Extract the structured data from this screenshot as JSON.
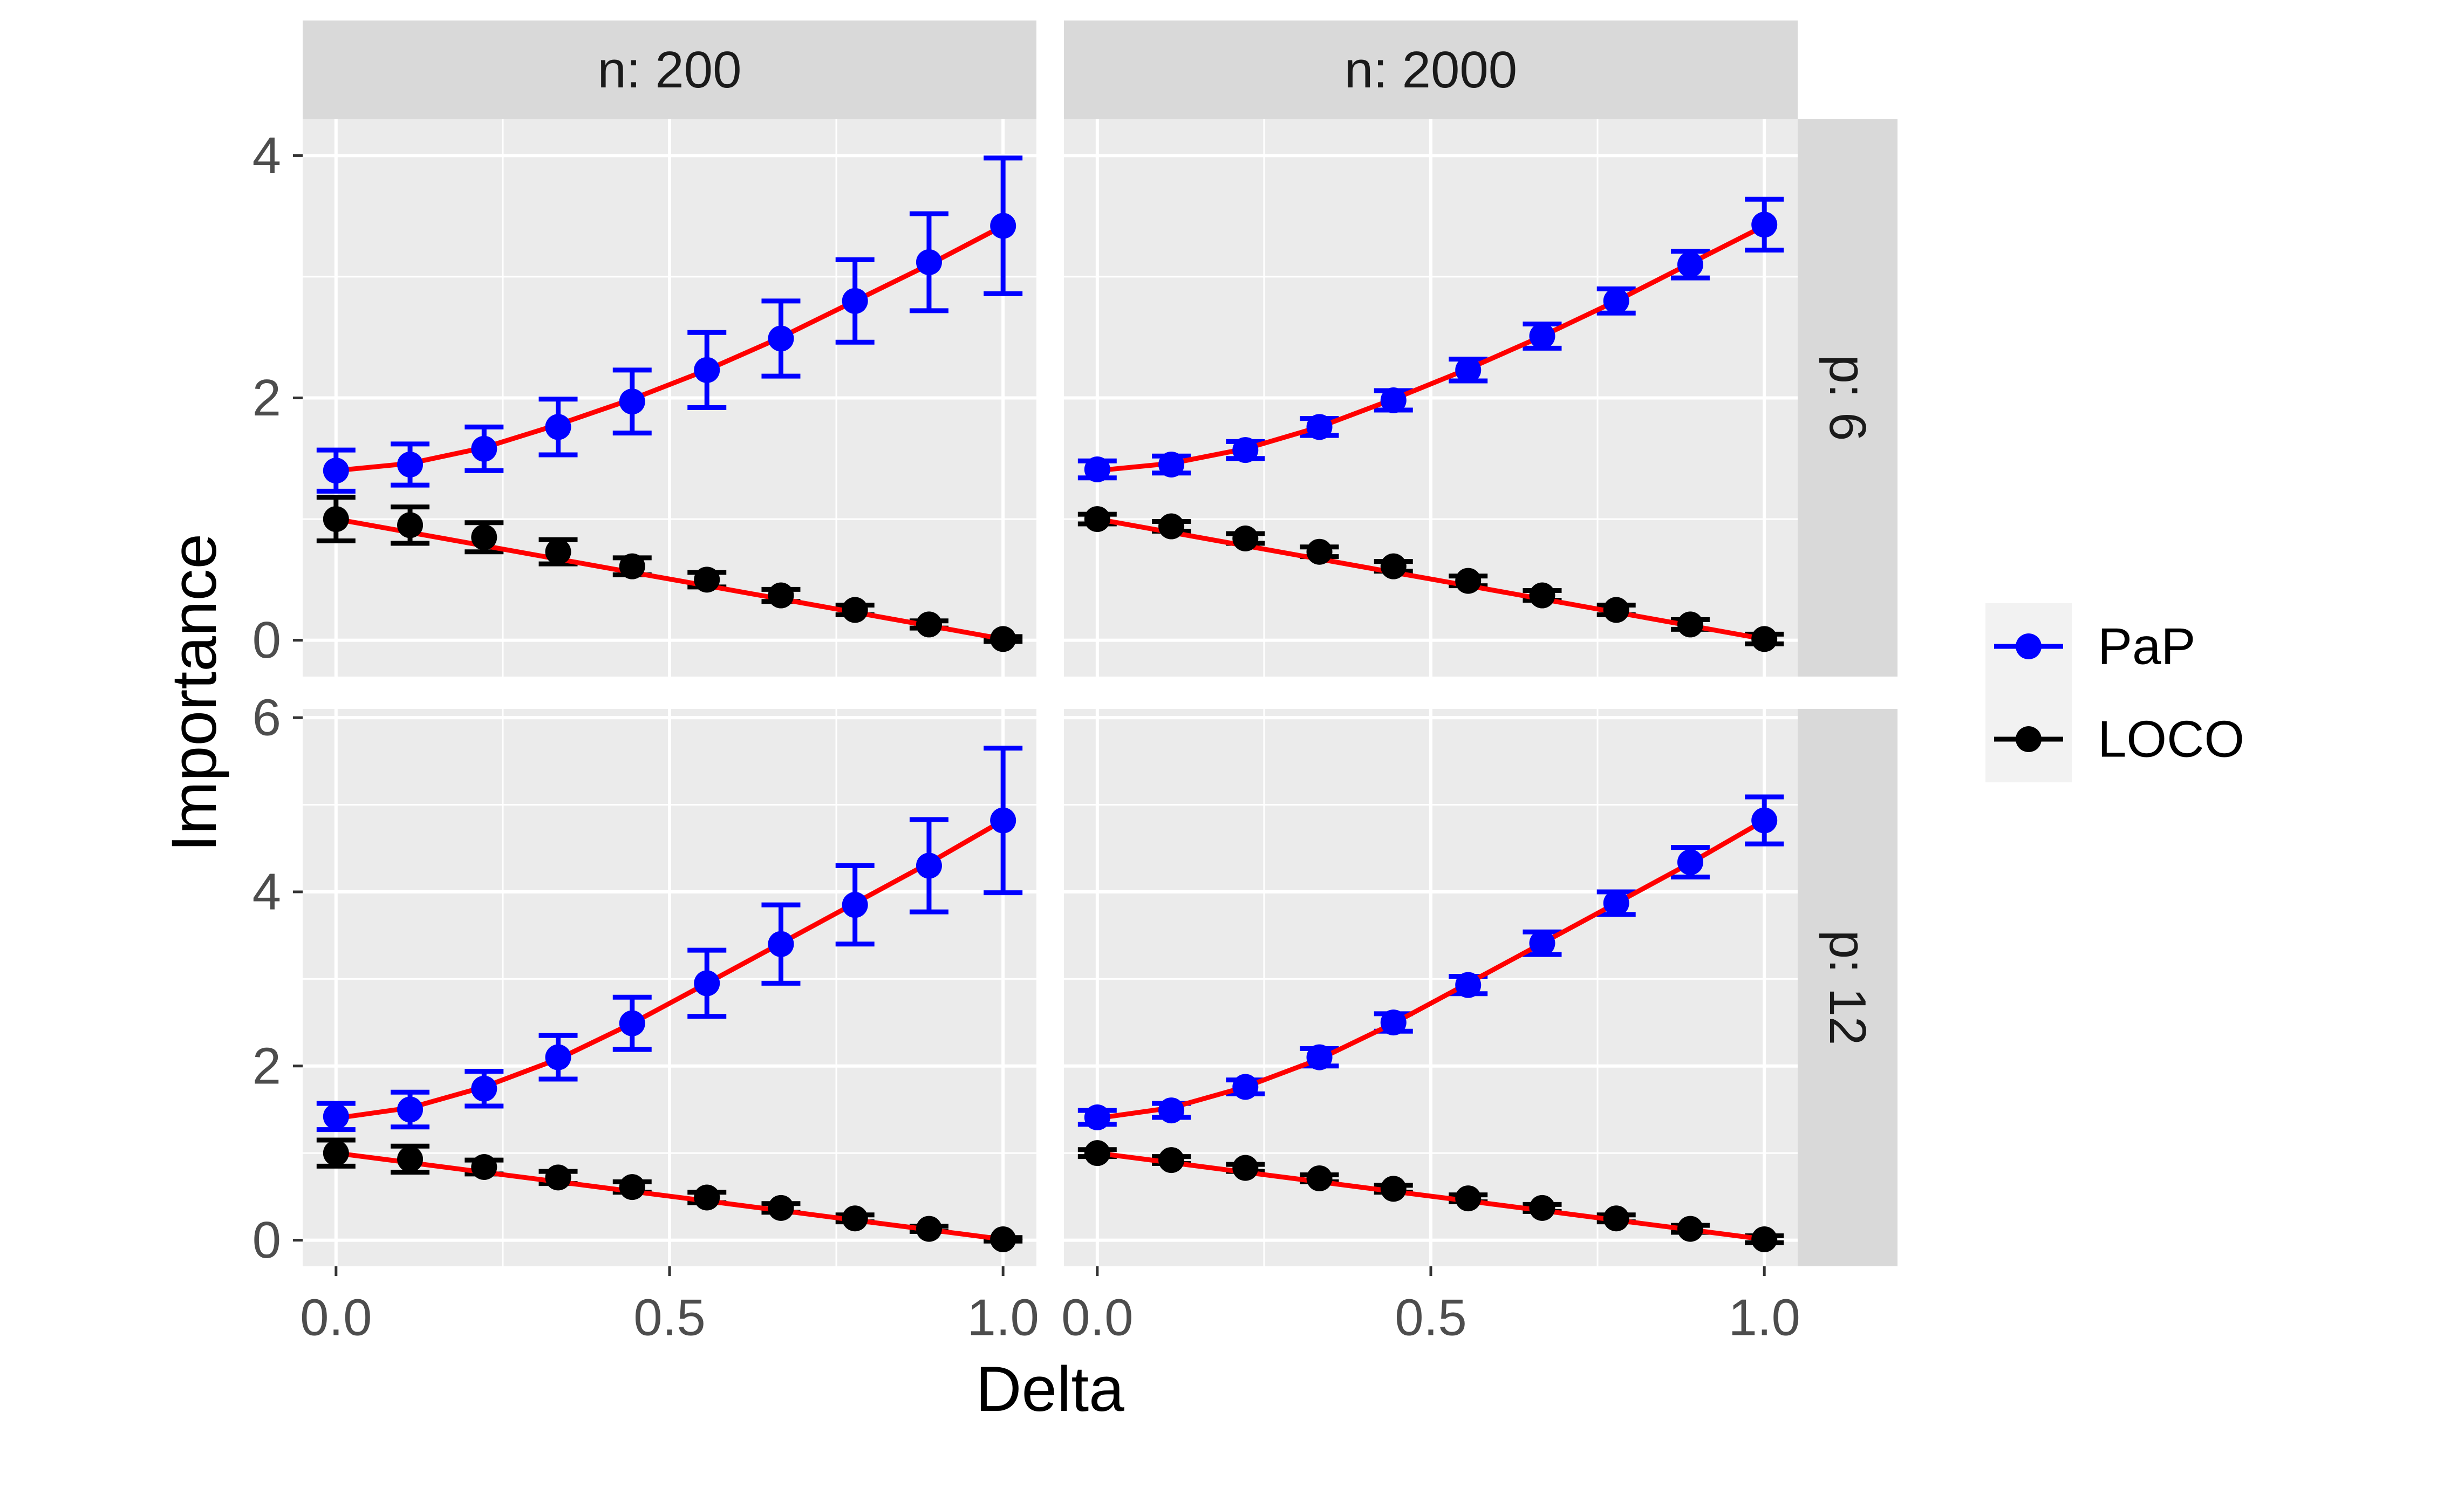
{
  "colors": {
    "panel_bg": "#EBEBEB",
    "strip_bg": "#D9D9D9",
    "grid": "#FFFFFF",
    "tick_text": "#4D4D4D",
    "axis_title": "#000000",
    "fit_line": "#FF0000",
    "pap": "#0000FF",
    "loco": "#000000"
  },
  "chart_data": {
    "type": "line",
    "facet_type": "grid",
    "xlabel": "Delta",
    "ylabel": "Importance",
    "col_strips": [
      "n: 200",
      "n: 2000"
    ],
    "row_strips": [
      "p: 6",
      "p: 12"
    ],
    "x_ticks": [
      0.0,
      0.5,
      1.0
    ],
    "x_tick_labels": [
      "0.0",
      "0.5",
      "1.0"
    ],
    "xlim": [
      -0.05,
      1.05
    ],
    "rows": [
      {
        "row_label": "p: 6",
        "ylim": [
          -0.3,
          4.3
        ],
        "y_ticks": [
          0,
          2,
          4
        ],
        "y_tick_labels": [
          "0",
          "2",
          "4"
        ]
      },
      {
        "row_label": "p: 12",
        "ylim": [
          -0.3,
          6.1
        ],
        "y_ticks": [
          0,
          2,
          4,
          6
        ],
        "y_tick_labels": [
          "0",
          "2",
          "4",
          "6"
        ]
      }
    ],
    "legend": {
      "position": "right",
      "entries": [
        {
          "label": "PaP",
          "color": "#0000FF"
        },
        {
          "label": "LOCO",
          "color": "#000000"
        }
      ]
    },
    "x": [
      0.0,
      0.111,
      0.222,
      0.333,
      0.444,
      0.556,
      0.667,
      0.778,
      0.889,
      1.0
    ],
    "panels": [
      {
        "row": 0,
        "col": 0,
        "series": [
          {
            "name": "PaP",
            "values": [
              1.4,
              1.45,
              1.58,
              1.76,
              1.97,
              2.23,
              2.49,
              2.8,
              3.12,
              3.42
            ],
            "err": [
              0.17,
              0.17,
              0.18,
              0.23,
              0.26,
              0.31,
              0.31,
              0.34,
              0.4,
              0.56
            ],
            "fit": [
              1.4,
              1.46,
              1.59,
              1.78,
              1.99,
              2.23,
              2.5,
              2.8,
              3.1,
              3.42
            ]
          },
          {
            "name": "LOCO",
            "values": [
              1.0,
              0.95,
              0.85,
              0.73,
              0.61,
              0.5,
              0.37,
              0.25,
              0.13,
              0.01
            ],
            "err": [
              0.18,
              0.15,
              0.12,
              0.1,
              0.07,
              0.06,
              0.05,
              0.04,
              0.03,
              0.02
            ],
            "fit": [
              1.0,
              0.89,
              0.78,
              0.67,
              0.56,
              0.45,
              0.34,
              0.23,
              0.12,
              0.01
            ]
          }
        ]
      },
      {
        "row": 0,
        "col": 1,
        "series": [
          {
            "name": "PaP",
            "values": [
              1.41,
              1.45,
              1.57,
              1.76,
              1.98,
              2.23,
              2.51,
              2.8,
              3.1,
              3.43
            ],
            "err": [
              0.07,
              0.07,
              0.07,
              0.07,
              0.08,
              0.09,
              0.1,
              0.1,
              0.11,
              0.21
            ],
            "fit": [
              1.4,
              1.46,
              1.58,
              1.76,
              1.99,
              2.24,
              2.51,
              2.8,
              3.11,
              3.42
            ]
          },
          {
            "name": "LOCO",
            "values": [
              1.0,
              0.94,
              0.84,
              0.73,
              0.61,
              0.49,
              0.37,
              0.25,
              0.13,
              0.01
            ],
            "err": [
              0.04,
              0.04,
              0.04,
              0.04,
              0.04,
              0.04,
              0.04,
              0.04,
              0.04,
              0.04
            ],
            "fit": [
              1.0,
              0.89,
              0.78,
              0.67,
              0.56,
              0.45,
              0.34,
              0.23,
              0.12,
              0.01
            ]
          }
        ]
      },
      {
        "row": 1,
        "col": 0,
        "series": [
          {
            "name": "PaP",
            "values": [
              1.42,
              1.5,
              1.74,
              2.1,
              2.49,
              2.95,
              3.4,
              3.85,
              4.3,
              4.82
            ],
            "err": [
              0.15,
              0.2,
              0.2,
              0.25,
              0.3,
              0.38,
              0.45,
              0.45,
              0.53,
              0.83
            ],
            "fit": [
              1.4,
              1.52,
              1.76,
              2.08,
              2.49,
              2.95,
              3.41,
              3.87,
              4.33,
              4.82
            ]
          },
          {
            "name": "LOCO",
            "values": [
              1.0,
              0.93,
              0.84,
              0.72,
              0.61,
              0.49,
              0.37,
              0.25,
              0.13,
              0.01
            ],
            "err": [
              0.15,
              0.15,
              0.08,
              0.07,
              0.06,
              0.06,
              0.05,
              0.04,
              0.03,
              0.02
            ],
            "fit": [
              1.0,
              0.89,
              0.78,
              0.67,
              0.56,
              0.45,
              0.34,
              0.23,
              0.12,
              0.01
            ]
          }
        ]
      },
      {
        "row": 1,
        "col": 1,
        "series": [
          {
            "name": "PaP",
            "values": [
              1.41,
              1.49,
              1.76,
              2.1,
              2.5,
              2.93,
              3.41,
              3.87,
              4.34,
              4.82
            ],
            "err": [
              0.08,
              0.08,
              0.08,
              0.1,
              0.1,
              0.1,
              0.13,
              0.13,
              0.17,
              0.27
            ],
            "fit": [
              1.4,
              1.52,
              1.76,
              2.08,
              2.49,
              2.95,
              3.41,
              3.87,
              4.33,
              4.82
            ]
          },
          {
            "name": "LOCO",
            "values": [
              1.0,
              0.92,
              0.83,
              0.71,
              0.59,
              0.48,
              0.37,
              0.25,
              0.13,
              0.01
            ],
            "err": [
              0.04,
              0.04,
              0.04,
              0.04,
              0.04,
              0.04,
              0.04,
              0.04,
              0.04,
              0.04
            ],
            "fit": [
              1.0,
              0.89,
              0.78,
              0.67,
              0.56,
              0.45,
              0.34,
              0.23,
              0.12,
              0.01
            ]
          }
        ]
      }
    ]
  }
}
